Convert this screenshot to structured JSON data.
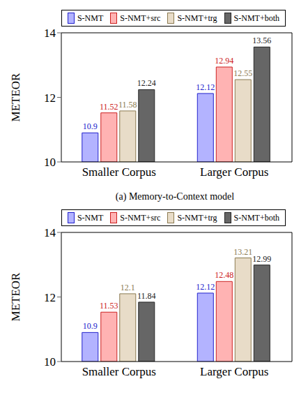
{
  "chart_data": [
    {
      "type": "bar",
      "title": "(a) Memory-to-Context model",
      "y_label": "METEOR",
      "categories": [
        "Smaller Corpus",
        "Larger Corpus"
      ],
      "series": [
        {
          "name": "S-NMT",
          "color": "#b3b3ff",
          "values": [
            10.9,
            12.12
          ]
        },
        {
          "name": "S-NMT+src",
          "color": "#ffb3b3",
          "values": [
            11.52,
            12.94
          ]
        },
        {
          "name": "S-NMT+trg",
          "color": "#e8dcc8",
          "values": [
            11.58,
            12.55
          ]
        },
        {
          "name": "S-NMT+both",
          "color": "#666666",
          "values": [
            12.24,
            13.56
          ]
        }
      ],
      "ylim": [
        10,
        14
      ],
      "yticks": [
        10,
        12,
        14
      ],
      "legend": "top",
      "data_labels": true
    },
    {
      "type": "bar",
      "y_label": "METEOR",
      "categories": [
        "Smaller Corpus",
        "Larger Corpus"
      ],
      "series": [
        {
          "name": "S-NMT",
          "color": "#b3b3ff",
          "values": [
            10.9,
            12.12
          ]
        },
        {
          "name": "S-NMT+src",
          "color": "#ffb3b3",
          "values": [
            11.53,
            12.48
          ]
        },
        {
          "name": "S-NMT+trg",
          "color": "#e8dcc8",
          "values": [
            12.1,
            13.21
          ]
        },
        {
          "name": "S-NMT+both",
          "color": "#666666",
          "values": [
            11.84,
            12.99
          ]
        }
      ],
      "ylim": [
        10,
        14
      ],
      "yticks": [
        10,
        12,
        14
      ],
      "legend": "top",
      "data_labels": true
    }
  ]
}
